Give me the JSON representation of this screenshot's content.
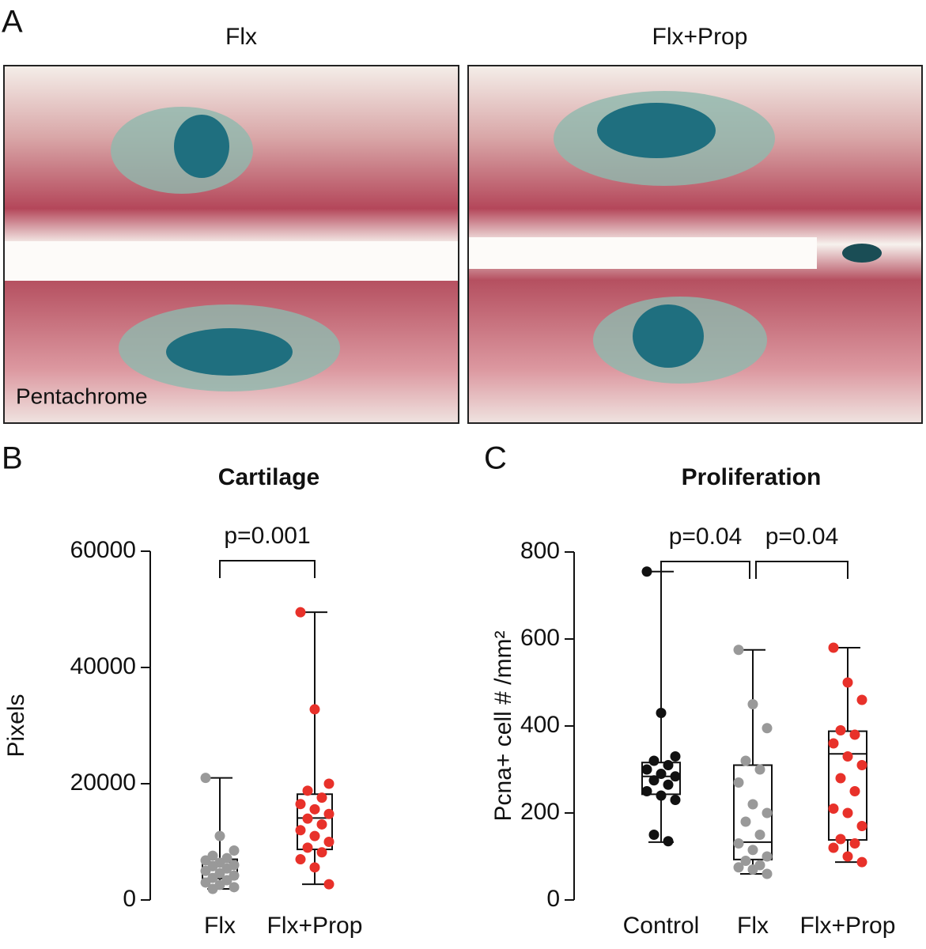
{
  "panel_labels": [
    "A",
    "B",
    "C"
  ],
  "images": [
    {
      "title": "Flx"
    },
    {
      "title": "Flx+Prop"
    }
  ],
  "image_caption": "Pentachrome",
  "chart_data": [
    {
      "type": "box",
      "title": "Cartilage",
      "y_label": "Pixels",
      "categories": [
        "Flx",
        "Flx+Prop"
      ],
      "ylim": [
        0,
        60000
      ],
      "yticks": [
        0,
        20000,
        40000,
        60000
      ],
      "boxes": [
        {
          "color": "#999999",
          "min": 1900,
          "q1": 3700,
          "median": 6500,
          "q3": 7000,
          "max": 21000,
          "points": [
            21000,
            11000,
            8500,
            7600,
            7200,
            6800,
            6400,
            6000,
            5800,
            5400,
            5000,
            4600,
            4200,
            3800,
            3400,
            3000,
            2600,
            2200,
            1900
          ]
        },
        {
          "color": "#e8312a",
          "min": 2700,
          "q1": 8700,
          "median": 14100,
          "q3": 18200,
          "max": 49500,
          "points": [
            49500,
            32800,
            20000,
            18800,
            17600,
            16500,
            15600,
            14800,
            14000,
            13000,
            12000,
            11000,
            10000,
            9000,
            8200,
            7000,
            5600,
            2700
          ]
        }
      ],
      "comparisons": [
        {
          "label": "p=0.001",
          "from": 0,
          "to": 1
        }
      ]
    },
    {
      "type": "box",
      "title": "Proliferation",
      "y_label": "Pcna+ cell # /mm²",
      "categories": [
        "Control",
        "Flx",
        "Flx+Prop"
      ],
      "ylim": [
        0,
        800
      ],
      "yticks": [
        0,
        200,
        400,
        600,
        800
      ],
      "boxes": [
        {
          "color": "#111111",
          "min": 133,
          "q1": 243,
          "median": 284,
          "q3": 316,
          "max": 755,
          "points": [
            755,
            430,
            330,
            320,
            310,
            300,
            290,
            284,
            275,
            265,
            250,
            240,
            230,
            150,
            135
          ]
        },
        {
          "color": "#999999",
          "min": 60,
          "q1": 93,
          "median": 133,
          "q3": 310,
          "max": 575,
          "points": [
            575,
            450,
            395,
            320,
            300,
            270,
            220,
            200,
            180,
            150,
            130,
            115,
            100,
            90,
            80,
            75,
            70,
            60
          ]
        },
        {
          "color": "#e8312a",
          "min": 87,
          "q1": 138,
          "median": 336,
          "q3": 388,
          "max": 580,
          "points": [
            580,
            500,
            460,
            390,
            380,
            360,
            330,
            310,
            280,
            250,
            210,
            200,
            170,
            140,
            130,
            120,
            100,
            87
          ]
        }
      ],
      "comparisons": [
        {
          "label": "p=0.04",
          "from": 0,
          "to": 1
        },
        {
          "label": "p=0.04",
          "from": 1,
          "to": 2
        }
      ]
    }
  ]
}
